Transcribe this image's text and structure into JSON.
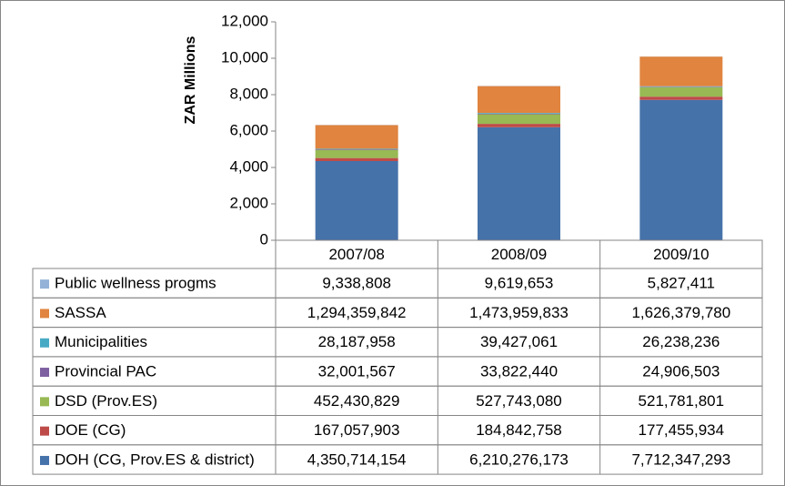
{
  "chart_data": {
    "type": "bar",
    "stacked": true,
    "y_label": "ZAR  Millions",
    "categories": [
      "2007/08",
      "2008/09",
      "2009/10"
    ],
    "ylim": [
      0,
      12000
    ],
    "yticks": [
      0,
      {
        "value": 2000,
        "label": "2,000"
      },
      {
        "value": 4000,
        "label": "4,000"
      },
      {
        "value": 6000,
        "label": "6,000"
      },
      {
        "value": 8000,
        "label": "8,000"
      },
      {
        "value": 10000,
        "label": "10,000"
      },
      {
        "value": 12000,
        "label": "12,000"
      }
    ],
    "grid": false,
    "series": [
      {
        "name": "DOH (CG, Prov.ES & district)",
        "color": "#4672aa",
        "values": [
          4350.714154,
          6210.276173,
          7712.347293
        ],
        "value_labels": [
          "4,350,714,154",
          "6,210,276,173",
          "7,712,347,293"
        ]
      },
      {
        "name": "DOE (CG)",
        "color": "#be4b48",
        "values": [
          167.057903,
          184.842758,
          177.455934
        ],
        "value_labels": [
          "167,057,903",
          "184,842,758",
          "177,455,934"
        ]
      },
      {
        "name": "DSD (Prov.ES)",
        "color": "#98b954",
        "values": [
          452.430829,
          527.74308,
          521.781801
        ],
        "value_labels": [
          "452,430,829",
          "527,743,080",
          "521,781,801"
        ]
      },
      {
        "name": "Provincial PAC",
        "color": "#7d60a0",
        "values": [
          32.001567,
          33.82244,
          24.906503
        ],
        "value_labels": [
          "32,001,567",
          "33,822,440",
          "24,906,503"
        ]
      },
      {
        "name": "Municipalities",
        "color": "#46aac5",
        "values": [
          28.187958,
          39.427061,
          26.238236
        ],
        "value_labels": [
          "28,187,958",
          "39,427,061",
          "26,238,236"
        ]
      },
      {
        "name": "SASSA",
        "color": "#e0843f",
        "values": [
          1294.359842,
          1473.959833,
          1626.37978
        ],
        "value_labels": [
          "1,294,359,842",
          "1,473,959,833",
          "1,626,379,780"
        ]
      },
      {
        "name": "Public wellness progms",
        "color": "#94b2d8",
        "values": [
          9.338808,
          9.619653,
          5.827411
        ],
        "value_labels": [
          "9,338,808",
          "9,619,653",
          "5,827,411"
        ]
      }
    ]
  }
}
